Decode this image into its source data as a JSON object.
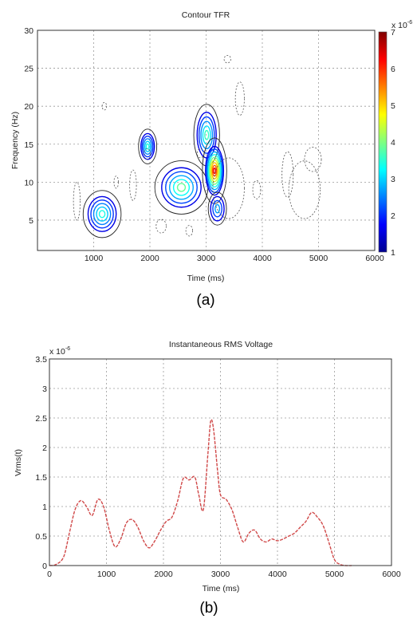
{
  "chart_data": [
    {
      "type": "heatmap",
      "title": "Contour TFR",
      "xlabel": "Time (ms)",
      "ylabel": "Frequency (Hz)",
      "xlim": [
        0,
        6000
      ],
      "ylim": [
        1,
        30
      ],
      "xticks": [
        "1000",
        "2000",
        "3000",
        "4000",
        "5000",
        "6000"
      ],
      "yticks": [
        "5",
        "10",
        "15",
        "20",
        "25",
        "30"
      ],
      "grid": true,
      "colorbar": {
        "ticks": [
          "1",
          "2",
          "3",
          "4",
          "5",
          "6",
          "7"
        ],
        "multiplier": "x 10",
        "multiplier_exponent": "-6",
        "colormap": "jet",
        "range": [
          1,
          7
        ]
      },
      "contours": [
        {
          "cx": 1150,
          "cy": 5.8,
          "rx": 250,
          "ry": 2.3,
          "peak": 3
        },
        {
          "cx": 1960,
          "cy": 14.7,
          "rx": 120,
          "ry": 1.7,
          "peak": 3
        },
        {
          "cx": 2560,
          "cy": 9.3,
          "rx": 350,
          "ry": 2.6,
          "peak": 3.5
        },
        {
          "cx": 3010,
          "cy": 16.2,
          "rx": 170,
          "ry": 3.0,
          "peak": 3.2
        },
        {
          "cx": 3150,
          "cy": 11.5,
          "rx": 160,
          "ry": 3.2,
          "peak": 6.2
        },
        {
          "cx": 3200,
          "cy": 6.5,
          "rx": 120,
          "ry": 1.6,
          "peak": 2.2
        }
      ],
      "caption": "(a)"
    },
    {
      "type": "line",
      "title": "Instantaneous RMS Voltage",
      "xlabel": "Time (ms)",
      "ylabel": "Vrms(t)",
      "xlim": [
        0,
        6000
      ],
      "ylim": [
        0,
        3.5
      ],
      "xticks": [
        "0",
        "1000",
        "2000",
        "3000",
        "4000",
        "5000",
        "6000"
      ],
      "yticks": [
        "0",
        "0.5",
        "1",
        "1.5",
        "2",
        "2.5",
        "3",
        "3.5"
      ],
      "y_multiplier": "x 10",
      "y_multiplier_exponent": "-6",
      "grid": true,
      "line_color": "#d04848",
      "series": [
        {
          "x": [
            0,
            120,
            250,
            350,
            450,
            550,
            650,
            750,
            850,
            950,
            1050,
            1150,
            1250,
            1350,
            1450,
            1550,
            1650,
            1750,
            1850,
            1950,
            2050,
            2150,
            2250,
            2350,
            2450,
            2550,
            2620,
            2700,
            2780,
            2830,
            2880,
            2950,
            3000,
            3100,
            3200,
            3300,
            3400,
            3500,
            3600,
            3700,
            3800,
            3900,
            4000,
            4100,
            4200,
            4300,
            4400,
            4500,
            4600,
            4700,
            4800,
            4900,
            5000,
            5100,
            5200,
            5300
          ],
          "y": [
            0,
            0.02,
            0.15,
            0.55,
            0.95,
            1.1,
            1.0,
            0.85,
            1.12,
            1.0,
            0.6,
            0.32,
            0.45,
            0.72,
            0.78,
            0.65,
            0.42,
            0.3,
            0.42,
            0.6,
            0.75,
            0.82,
            1.1,
            1.48,
            1.45,
            1.5,
            1.2,
            0.95,
            1.9,
            2.45,
            2.3,
            1.6,
            1.2,
            1.12,
            0.95,
            0.65,
            0.4,
            0.55,
            0.6,
            0.45,
            0.4,
            0.45,
            0.42,
            0.45,
            0.5,
            0.55,
            0.65,
            0.75,
            0.9,
            0.82,
            0.68,
            0.4,
            0.1,
            0.02,
            0.0,
            0.0
          ]
        }
      ],
      "caption": "(b)"
    }
  ]
}
